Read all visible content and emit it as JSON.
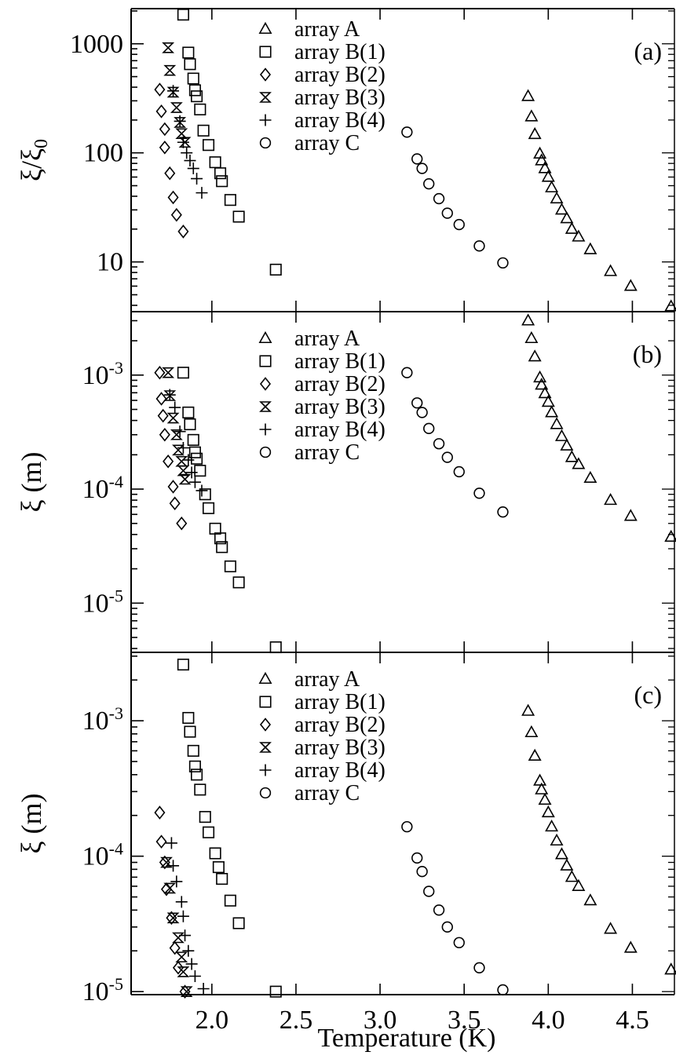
{
  "figure": {
    "xlabel": "Temperature (K)",
    "x_ticks": [
      "2.0",
      "2.5",
      "3.0",
      "3.5",
      "4.0",
      "4.5"
    ]
  },
  "chart_data": [
    {
      "type": "scatter",
      "panel_label": "(a)",
      "ylabel_main": "ξ/ξ",
      "ylabel_sub": "0",
      "yscale": "log",
      "ylim": [
        3.5,
        2100
      ],
      "xlim": [
        1.52,
        4.75
      ],
      "y_ticks": [
        {
          "value": 1000,
          "base": "1000"
        },
        {
          "value": 100,
          "base": "100"
        },
        {
          "value": 10,
          "base": "10"
        }
      ],
      "legend_position": "top-center",
      "series": [
        {
          "name": "array A",
          "marker": "triangle",
          "points": [
            [
              3.88,
              330
            ],
            [
              3.9,
              215
            ],
            [
              3.92,
              148
            ],
            [
              3.95,
              98
            ],
            [
              3.96,
              85
            ],
            [
              3.98,
              72
            ],
            [
              4.0,
              60
            ],
            [
              4.02,
              48
            ],
            [
              4.05,
              38
            ],
            [
              4.08,
              30
            ],
            [
              4.11,
              25
            ],
            [
              4.14,
              20
            ],
            [
              4.18,
              17
            ],
            [
              4.25,
              13
            ],
            [
              4.37,
              8.2
            ],
            [
              4.49,
              6.0
            ],
            [
              4.73,
              3.9
            ]
          ]
        },
        {
          "name": "array B(1)",
          "marker": "square",
          "points": [
            [
              1.83,
              1850
            ],
            [
              1.86,
              830
            ],
            [
              1.87,
              650
            ],
            [
              1.89,
              480
            ],
            [
              1.9,
              375
            ],
            [
              1.91,
              330
            ],
            [
              1.93,
              250
            ],
            [
              1.95,
              160
            ],
            [
              1.98,
              118
            ],
            [
              2.02,
              82
            ],
            [
              2.05,
              65
            ],
            [
              2.06,
              55
            ],
            [
              2.11,
              37
            ],
            [
              2.16,
              26
            ],
            [
              2.38,
              8.5
            ]
          ]
        },
        {
          "name": "array B(2)",
          "marker": "diamond",
          "points": [
            [
              1.69,
              380
            ],
            [
              1.7,
              240
            ],
            [
              1.72,
              165
            ],
            [
              1.72,
              112
            ],
            [
              1.75,
              65
            ],
            [
              1.77,
              39
            ],
            [
              1.79,
              27
            ],
            [
              1.83,
              19
            ]
          ]
        },
        {
          "name": "array B(3)",
          "marker": "hourglass",
          "points": [
            [
              1.74,
              920
            ],
            [
              1.75,
              570
            ],
            [
              1.77,
              360
            ],
            [
              1.79,
              260
            ],
            [
              1.81,
              190
            ],
            [
              1.82,
              150
            ],
            [
              1.84,
              125
            ]
          ]
        },
        {
          "name": "array B(4)",
          "marker": "plus",
          "points": [
            [
              1.77,
              370
            ],
            [
              1.81,
              195
            ],
            [
              1.83,
              125
            ],
            [
              1.85,
              100
            ],
            [
              1.87,
              85
            ],
            [
              1.89,
              72
            ],
            [
              1.91,
              58
            ],
            [
              1.94,
              43
            ]
          ]
        },
        {
          "name": "array C",
          "marker": "circle",
          "points": [
            [
              3.16,
              155
            ],
            [
              3.22,
              88
            ],
            [
              3.25,
              72
            ],
            [
              3.29,
              52
            ],
            [
              3.35,
              38
            ],
            [
              3.4,
              28
            ],
            [
              3.47,
              22
            ],
            [
              3.59,
              14
            ],
            [
              3.73,
              9.8
            ]
          ]
        }
      ]
    },
    {
      "type": "scatter",
      "panel_label": "(b)",
      "ylabel_main": "ξ (m)",
      "yscale": "log",
      "ylim": [
        3.7e-06,
        0.0036
      ],
      "xlim": [
        1.52,
        4.75
      ],
      "y_ticks": [
        {
          "value": 0.001,
          "base": "10",
          "exp": "-3"
        },
        {
          "value": 0.0001,
          "base": "10",
          "exp": "-4"
        },
        {
          "value": 1e-05,
          "base": "10",
          "exp": "-5"
        }
      ],
      "legend_position": "top-center",
      "series": [
        {
          "name": "array A",
          "marker": "triangle",
          "points": [
            [
              3.88,
              0.003
            ],
            [
              3.9,
              0.0021
            ],
            [
              3.92,
              0.00145
            ],
            [
              3.95,
              0.00095
            ],
            [
              3.96,
              0.00082
            ],
            [
              3.98,
              0.00069
            ],
            [
              4.0,
              0.00058
            ],
            [
              4.02,
              0.00047
            ],
            [
              4.05,
              0.00037
            ],
            [
              4.08,
              0.00029
            ],
            [
              4.11,
              0.00024
            ],
            [
              4.14,
              0.00019
            ],
            [
              4.18,
              0.000165
            ],
            [
              4.25,
              0.000125
            ],
            [
              4.37,
              8e-05
            ],
            [
              4.49,
              5.8e-05
            ],
            [
              4.73,
              3.8e-05
            ]
          ]
        },
        {
          "name": "array B(1)",
          "marker": "square",
          "points": [
            [
              1.83,
              0.00105
            ],
            [
              1.86,
              0.00047
            ],
            [
              1.87,
              0.00037
            ],
            [
              1.89,
              0.00027
            ],
            [
              1.9,
              0.00021
            ],
            [
              1.91,
              0.000185
            ],
            [
              1.93,
              0.000145
            ],
            [
              1.96,
              9e-05
            ],
            [
              1.98,
              6.8e-05
            ],
            [
              2.02,
              4.5e-05
            ],
            [
              2.05,
              3.7e-05
            ],
            [
              2.06,
              3.1e-05
            ],
            [
              2.11,
              2.1e-05
            ],
            [
              2.16,
              1.52e-05
            ],
            [
              2.38,
              4.1e-06
            ]
          ]
        },
        {
          "name": "array B(2)",
          "marker": "diamond",
          "points": [
            [
              1.69,
              0.00105
            ],
            [
              1.7,
              0.00062
            ],
            [
              1.71,
              0.00044
            ],
            [
              1.72,
              0.0003
            ],
            [
              1.74,
              0.000175
            ],
            [
              1.77,
              0.000105
            ],
            [
              1.78,
              7.5e-05
            ],
            [
              1.82,
              5e-05
            ]
          ]
        },
        {
          "name": "array B(3)",
          "marker": "hourglass",
          "points": [
            [
              1.74,
              0.00105
            ],
            [
              1.75,
              0.00066
            ],
            [
              1.77,
              0.00042
            ],
            [
              1.79,
              0.0003
            ],
            [
              1.8,
              0.00022
            ],
            [
              1.82,
              0.000175
            ],
            [
              1.83,
              0.000145
            ],
            [
              1.84,
              0.000122
            ]
          ]
        },
        {
          "name": "array B(4)",
          "marker": "plus",
          "points": [
            [
              1.75,
              0.00067
            ],
            [
              1.78,
              0.00052
            ],
            [
              1.81,
              0.00032
            ],
            [
              1.83,
              0.00023
            ],
            [
              1.86,
              0.00018
            ],
            [
              1.88,
              0.00014
            ],
            [
              1.9,
              0.000115
            ],
            [
              1.94,
              9.7e-05
            ]
          ]
        },
        {
          "name": "array C",
          "marker": "circle",
          "points": [
            [
              3.16,
              0.00105
            ],
            [
              3.22,
              0.00057
            ],
            [
              3.25,
              0.00047
            ],
            [
              3.29,
              0.00034
            ],
            [
              3.35,
              0.00025
            ],
            [
              3.4,
              0.00019
            ],
            [
              3.47,
              0.000142
            ],
            [
              3.59,
              9.2e-05
            ],
            [
              3.73,
              6.3e-05
            ]
          ]
        }
      ]
    },
    {
      "type": "scatter",
      "panel_label": "(c)",
      "ylabel_main": "ξ (m)",
      "yscale": "log",
      "ylim": [
        9.5e-06,
        0.0032
      ],
      "xlim": [
        1.52,
        4.75
      ],
      "y_ticks": [
        {
          "value": 0.001,
          "base": "10",
          "exp": "-3"
        },
        {
          "value": 0.0001,
          "base": "10",
          "exp": "-4"
        },
        {
          "value": 1e-05,
          "base": "10",
          "exp": "-5"
        }
      ],
      "legend_position": "top-center",
      "series": [
        {
          "name": "array A",
          "marker": "triangle",
          "points": [
            [
              3.88,
              0.00118
            ],
            [
              3.9,
              0.00082
            ],
            [
              3.92,
              0.00055
            ],
            [
              3.95,
              0.00036
            ],
            [
              3.96,
              0.00031
            ],
            [
              3.98,
              0.00026
            ],
            [
              4.0,
              0.00021
            ],
            [
              4.02,
              0.000165
            ],
            [
              4.05,
              0.00013
            ],
            [
              4.08,
              0.000103
            ],
            [
              4.11,
              8.5e-05
            ],
            [
              4.14,
              7e-05
            ],
            [
              4.18,
              6e-05
            ],
            [
              4.25,
              4.7e-05
            ],
            [
              4.37,
              2.9e-05
            ],
            [
              4.49,
              2.1e-05
            ],
            [
              4.73,
              1.45e-05
            ]
          ]
        },
        {
          "name": "array B(1)",
          "marker": "square",
          "points": [
            [
              1.83,
              0.0026
            ],
            [
              1.86,
              0.00105
            ],
            [
              1.87,
              0.00083
            ],
            [
              1.89,
              0.0006
            ],
            [
              1.9,
              0.00046
            ],
            [
              1.91,
              0.0004
            ],
            [
              1.93,
              0.00031
            ],
            [
              1.96,
              0.000195
            ],
            [
              1.98,
              0.00015
            ],
            [
              2.02,
              0.000105
            ],
            [
              2.04,
              8.3e-05
            ],
            [
              2.06,
              6.8e-05
            ],
            [
              2.11,
              4.7e-05
            ],
            [
              2.16,
              3.2e-05
            ],
            [
              2.38,
              1e-05
            ]
          ]
        },
        {
          "name": "array B(2)",
          "marker": "diamond",
          "points": [
            [
              1.69,
              0.00021
            ],
            [
              1.7,
              0.000128
            ],
            [
              1.72,
              9e-05
            ],
            [
              1.73,
              5.7e-05
            ],
            [
              1.76,
              3.5e-05
            ],
            [
              1.78,
              2.1e-05
            ],
            [
              1.8,
              1.5e-05
            ],
            [
              1.84,
              1e-05
            ]
          ]
        },
        {
          "name": "array B(3)",
          "marker": "hourglass",
          "points": [
            [
              1.73,
              9e-05
            ],
            [
              1.75,
              5.8e-05
            ],
            [
              1.77,
              3.5e-05
            ],
            [
              1.8,
              2.5e-05
            ],
            [
              1.82,
              1.8e-05
            ],
            [
              1.83,
              1.4e-05
            ],
            [
              1.85,
              1e-05
            ]
          ]
        },
        {
          "name": "array B(4)",
          "marker": "plus",
          "points": [
            [
              1.76,
              0.000125
            ],
            [
              1.77,
              8.5e-05
            ],
            [
              1.79,
              6.5e-05
            ],
            [
              1.82,
              4.6e-05
            ],
            [
              1.83,
              3.6e-05
            ],
            [
              1.84,
              2.6e-05
            ],
            [
              1.86,
              2e-05
            ],
            [
              1.88,
              1.6e-05
            ],
            [
              1.9,
              1.3e-05
            ],
            [
              1.95,
              1.05e-05
            ]
          ]
        },
        {
          "name": "array C",
          "marker": "circle",
          "points": [
            [
              3.16,
              0.000165
            ],
            [
              3.22,
              9.7e-05
            ],
            [
              3.25,
              7.7e-05
            ],
            [
              3.29,
              5.5e-05
            ],
            [
              3.35,
              4e-05
            ],
            [
              3.4,
              3e-05
            ],
            [
              3.47,
              2.3e-05
            ],
            [
              3.59,
              1.5e-05
            ],
            [
              3.73,
              1.03e-05
            ]
          ]
        }
      ]
    }
  ]
}
